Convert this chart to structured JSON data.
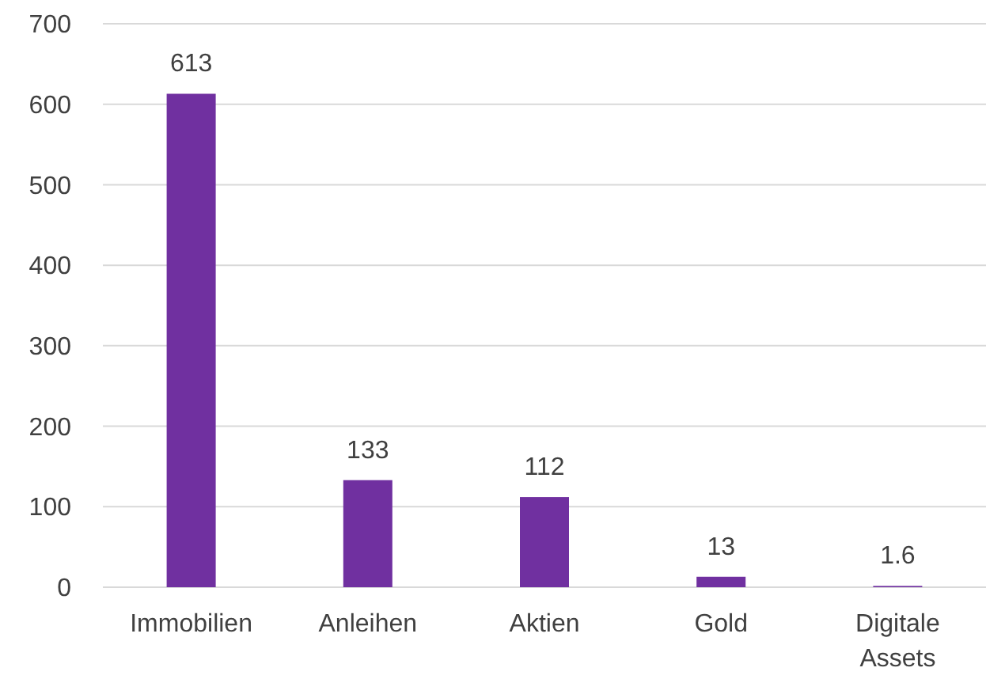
{
  "chart_data": {
    "type": "bar",
    "categories": [
      "Immobilien",
      "Anleihen",
      "Aktien",
      "Gold",
      "Digitale Assets"
    ],
    "values": [
      613,
      133,
      112,
      13,
      1.6
    ],
    "color": "#7030a0",
    "ylim": [
      0,
      700
    ],
    "yticks": [
      0,
      100,
      200,
      300,
      400,
      500,
      600,
      700
    ],
    "grid": "y",
    "data_labels": true
  }
}
